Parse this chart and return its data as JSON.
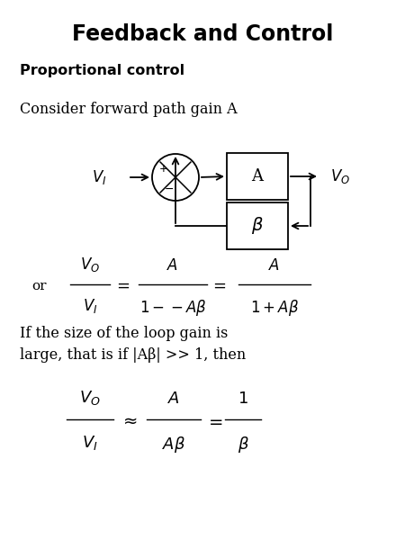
{
  "title": "Feedback and Control",
  "subtitle": "Proportional control",
  "consider_text": "Consider forward path gain A",
  "or_text": "or",
  "body_text": "If the size of the loop gain is\nlarge, that is if |Aβ| >> 1, then",
  "bg_color": "#ffffff",
  "text_color": "#000000"
}
